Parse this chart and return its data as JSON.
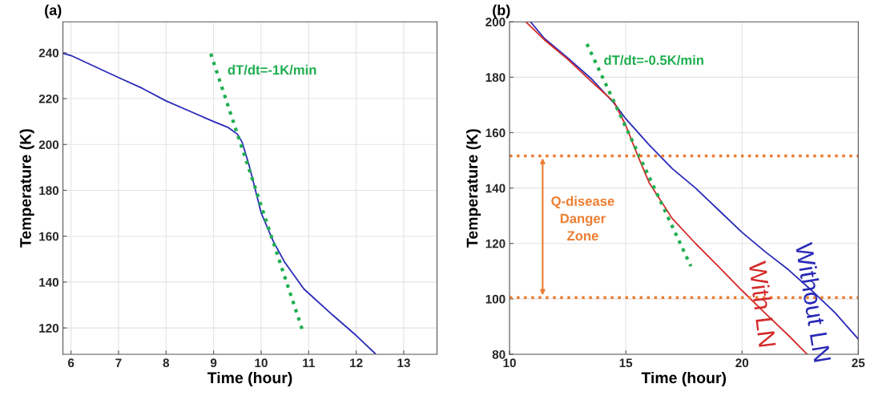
{
  "chart_data": [
    {
      "type": "line",
      "title": "(a)",
      "xlabel": "Time (hour)",
      "ylabel": "Temperature (K)",
      "xlim": [
        5.83,
        13.7
      ],
      "ylim": [
        108.5,
        253.5
      ],
      "xticks": [
        6,
        7,
        8,
        9,
        10,
        11,
        12,
        13
      ],
      "yticks": [
        120,
        140,
        160,
        180,
        200,
        220,
        240
      ],
      "grid": true,
      "series": [
        {
          "color": "#2a2ab8",
          "x": [
            5.83,
            6,
            6.5,
            7,
            7.5,
            8,
            8.5,
            9,
            9.3,
            9.5,
            9.6,
            9.75,
            10,
            10.25,
            10.5,
            10.9,
            11.5,
            12,
            12.4
          ],
          "values": [
            239.8,
            238.8,
            234,
            229.2,
            224.5,
            219,
            214.5,
            210,
            207.5,
            204.5,
            201,
            190.7,
            170.2,
            158,
            148.5,
            137,
            125.7,
            116.7,
            108.8
          ]
        },
        {
          "color": "#1fae4f",
          "line_style": "dotted",
          "x": [
            8.94,
            10.86
          ],
          "values": [
            239.6,
            119.6
          ]
        }
      ],
      "annotations": [
        "dT/dt=-1K/min"
      ]
    },
    {
      "type": "line",
      "title": "(b)",
      "xlabel": "Time (hour)",
      "ylabel": "Temperature (K)",
      "xlim": [
        10,
        25
      ],
      "ylim": [
        80,
        200
      ],
      "xticks": [
        10,
        15,
        20,
        25
      ],
      "yticks": [
        80,
        100,
        120,
        140,
        160,
        180,
        200
      ],
      "grid": true,
      "series": [
        {
          "name": "Without LN",
          "color": "#2a2ab8",
          "x": [
            10.9,
            11.5,
            12.5,
            13.5,
            14.5,
            15,
            16,
            17,
            18,
            19,
            20,
            21,
            22,
            23,
            24,
            25
          ],
          "values": [
            200,
            194,
            187,
            179.6,
            170.6,
            165,
            155.6,
            147,
            140,
            132,
            124,
            117,
            110.5,
            103,
            95,
            85.5
          ]
        },
        {
          "name": "With LN",
          "color": "#d42a2a",
          "x": [
            10.7,
            11.5,
            12.5,
            13.5,
            14.5,
            15,
            15.5,
            16,
            17,
            18,
            19,
            20,
            21,
            22,
            22.8
          ],
          "values": [
            200,
            193.5,
            186.5,
            178.6,
            171,
            162.6,
            152,
            142,
            129,
            120,
            111.6,
            103,
            94.8,
            86.8,
            80
          ]
        },
        {
          "color": "#1fae4f",
          "line_style": "dotted",
          "x": [
            13.33,
            17.8
          ],
          "values": [
            192,
            111.8
          ]
        }
      ],
      "ref_lines": [
        {
          "axis": "y",
          "value": 151.6,
          "color": "#ed7d31",
          "line_style": "dotted"
        },
        {
          "axis": "y",
          "value": 100.5,
          "color": "#ed7d31",
          "line_style": "dotted"
        }
      ],
      "annotations": [
        "dT/dt=-0.5K/min",
        "Q-disease\nDanger\nZone"
      ]
    }
  ]
}
